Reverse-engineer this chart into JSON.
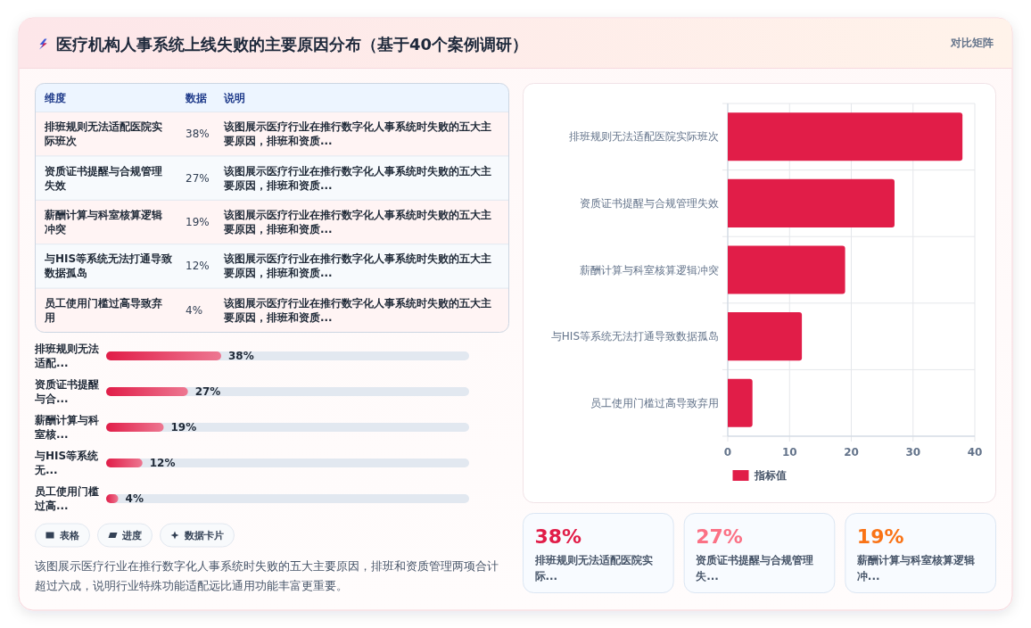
{
  "chart_data": [
    {
      "type": "other",
      "title": "医疗机构人事系统上线失败的主要原因分布（基于40个案例调研）",
      "subtitle": "对比矩阵"
    },
    {
      "type": "other",
      "categories": [
        "排班规则无法适配医院实际班次",
        "资质证书提醒与合规管理失效",
        "薪酬计算与科室核算逻辑冲突",
        "与HIS等系统无法打通导致数据孤岛",
        "员工使用门槛过高导致弃用"
      ],
      "value_labels": [
        "38%",
        "27%",
        "19%",
        "12%",
        "4%"
      ],
      "annotations": [
        "维度",
        "数据",
        "说明",
        "该图展示医疗行业在推行数字化人事系统时失败的五大主要原因，排班和资质...",
        "该图展示医疗行业在推行数字化人事系统时失败的五大主要原因，排班和资质...",
        "该图展示医疗行业在推行数字化人事系统时失败的五大主要原因，排班和资质...",
        "该图展示医疗行业在推行数字化人事系统时失败的五大主要原因，排班和资质...",
        "该图展示医疗行业在推行数字化人事系统时失败的五大主要原因，排班和资质..."
      ]
    },
    {
      "type": "bar",
      "orientation": "horizontal",
      "categories": [
        "排班规则无法适配...",
        "资质证书提醒与合...",
        "薪酬计算与科室核...",
        "与HIS等系统无...",
        "员工使用门槛过高..."
      ],
      "values": [
        38,
        27,
        19,
        12,
        4
      ],
      "value_labels": [
        "38%",
        "27%",
        "19%",
        "12%",
        "4%"
      ],
      "color": "#e11d48"
    },
    {
      "type": "other",
      "annotations": [
        "表格",
        "进度",
        "数据卡片",
        "该图展示医疗行业在推行数字化人事系统时失败的五大主要原因，排班和资质管理两项合计超过六成，说明行业特殊功能适配远比通用功能丰富更重要。"
      ]
    },
    {
      "type": "bar",
      "orientation": "horizontal",
      "categories": [
        "排班规则无法适配医院实际班次",
        "资质证书提醒与合规管理失效",
        "薪酬计算与科室核算逻辑冲突",
        "与HIS等系统无法打通导致数据孤岛",
        "员工使用门槛过高导致弃用"
      ],
      "series": [
        {
          "name": "指标值",
          "color": "#e11d48",
          "values": [
            38,
            27,
            19,
            12,
            4
          ]
        }
      ],
      "xlim": [
        0,
        40
      ],
      "xticks": [
        0,
        10,
        20,
        30,
        40
      ],
      "grid": true,
      "legend": "bottom"
    },
    {
      "type": "other",
      "categories": [
        "排班规则无法适配医院实际...",
        "资质证书提醒与合规管理失...",
        "薪酬计算与科室核算逻辑冲..."
      ],
      "value_labels": [
        "38%",
        "27%",
        "19%"
      ]
    }
  ]
}
